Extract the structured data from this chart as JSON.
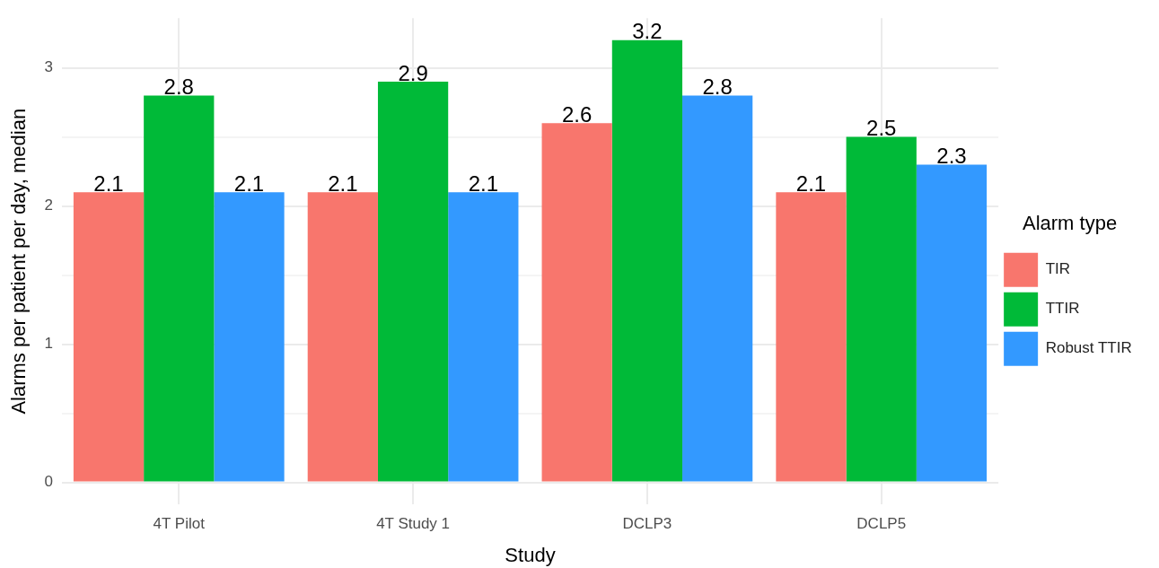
{
  "chart_data": {
    "type": "bar",
    "xlabel": "Study",
    "ylabel": "Alarms per patient per day, median",
    "legend_title": "Alarm type",
    "categories": [
      "4T Pilot",
      "4T Study 1",
      "DCLP3",
      "DCLP5"
    ],
    "series": [
      {
        "name": "TIR",
        "color": "#f8766d",
        "values": [
          2.1,
          2.1,
          2.6,
          2.1
        ]
      },
      {
        "name": "TTIR",
        "color": "#00ba38",
        "values": [
          2.8,
          2.9,
          3.2,
          2.5
        ]
      },
      {
        "name": "Robust TTIR",
        "color": "#3399ff",
        "values": [
          2.1,
          2.1,
          2.8,
          2.3
        ]
      }
    ],
    "ylim": [
      -0.16,
      3.36
    ],
    "yticks": [
      0,
      {
        "value": 0.5,
        "label": null
      },
      1,
      {
        "value": 1.5,
        "label": null
      },
      2,
      {
        "value": 2.5,
        "label": null
      },
      3
    ],
    "grid": true,
    "legend": "right",
    "data_labels": true
  }
}
